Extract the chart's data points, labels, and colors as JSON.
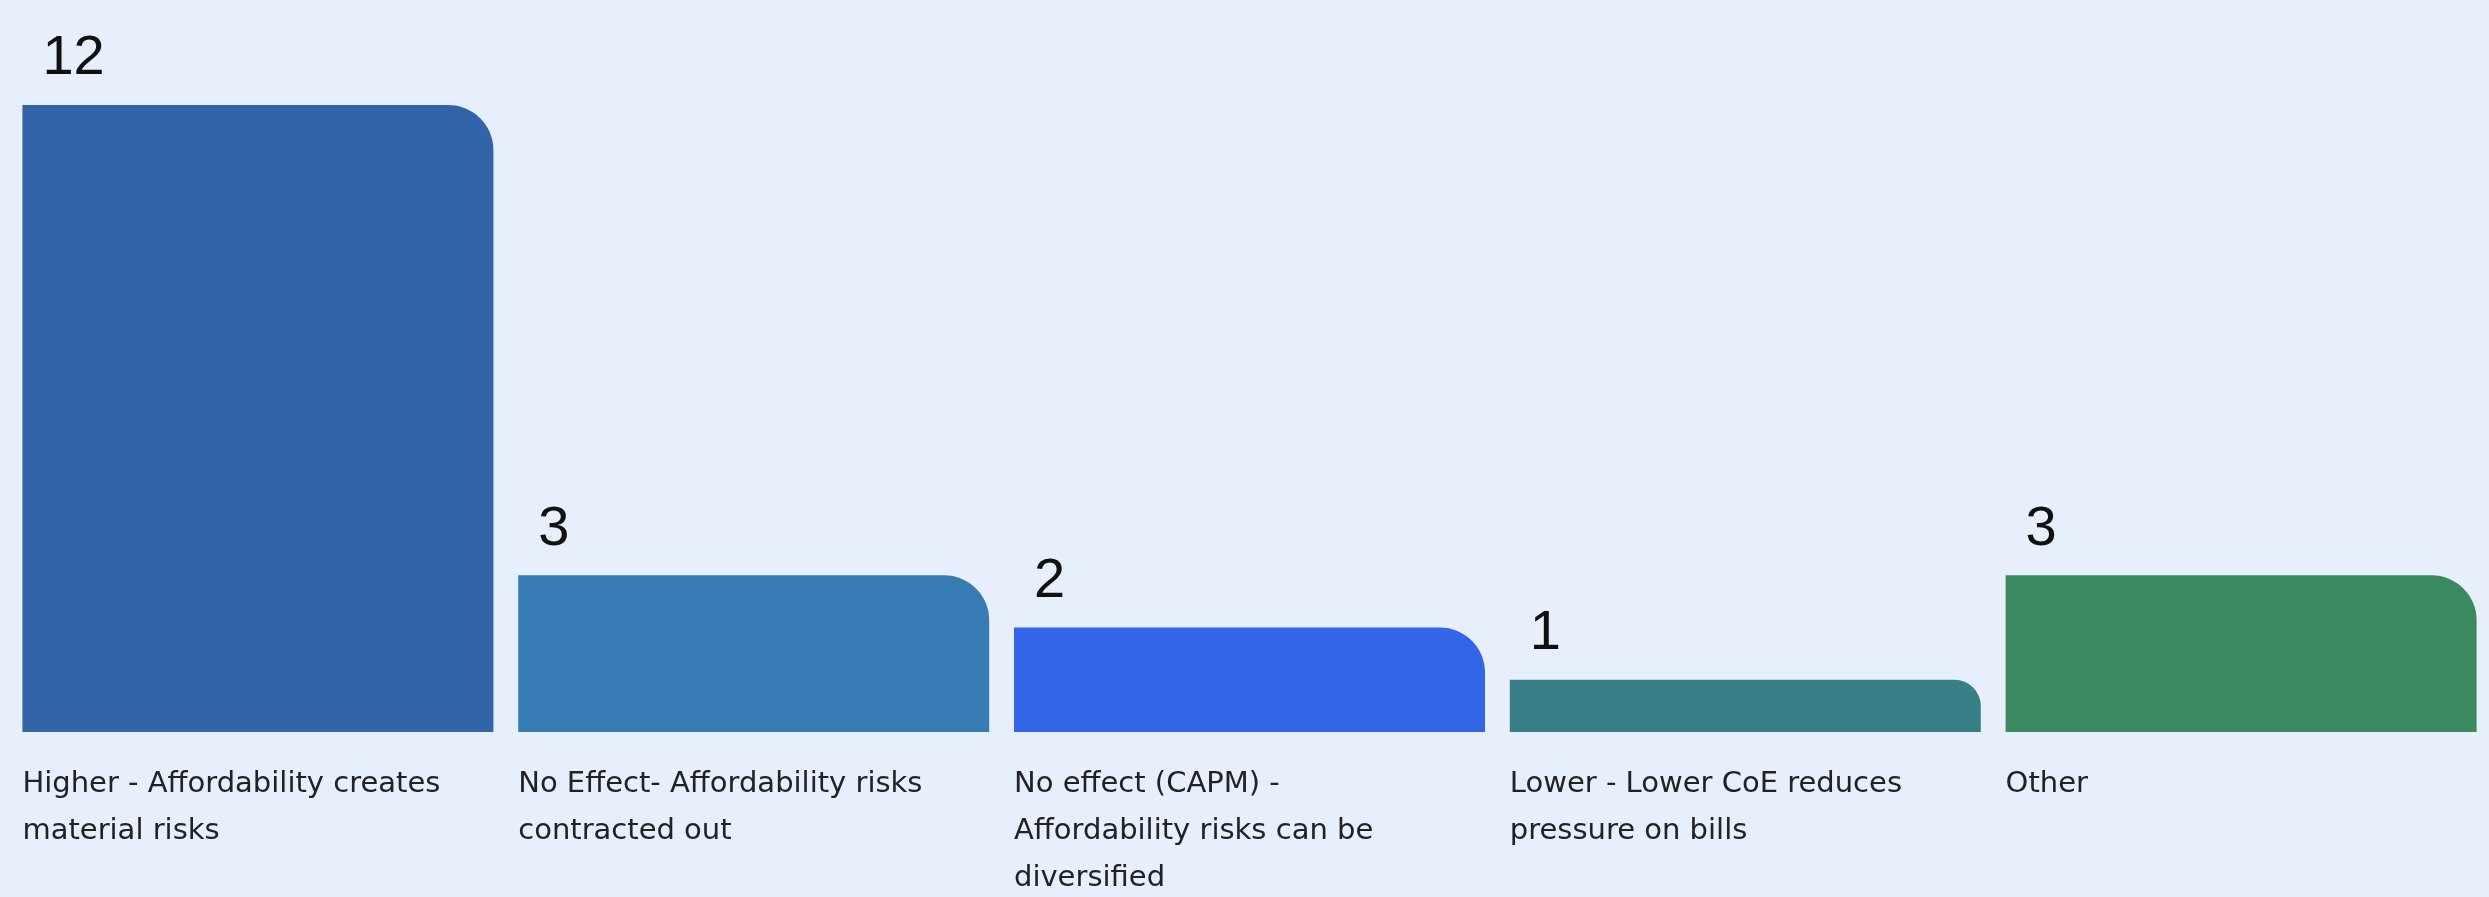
{
  "chart_data": {
    "type": "bar",
    "categories": [
      "Higher - Affordability creates material risks",
      "No Effect- Affordability risks contracted out",
      "No effect (CAPM) - Affordability risks can be diversified",
      "Lower - Lower CoE reduces pressure on bills",
      "Other"
    ],
    "values": [
      12,
      3,
      2,
      1,
      3
    ],
    "colors": [
      "#3464a8",
      "#377bb5",
      "#3366e6",
      "#377e87",
      "#3b8a5f"
    ],
    "data_labels": true,
    "legend": false
  }
}
